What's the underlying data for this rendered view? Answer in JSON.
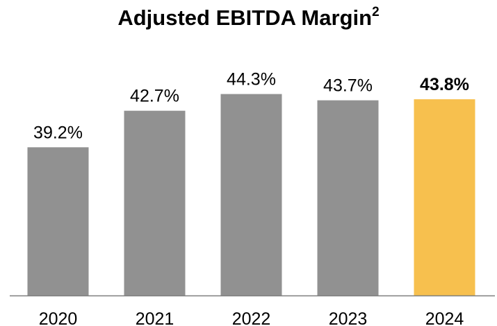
{
  "chart_data": {
    "type": "bar",
    "title": "Adjusted EBITDA Margin",
    "title_superscript": "2",
    "categories": [
      "2020",
      "2021",
      "2022",
      "2023",
      "2024"
    ],
    "values": [
      39.2,
      42.7,
      44.3,
      43.7,
      43.8
    ],
    "value_labels": [
      "39.2%",
      "42.7%",
      "44.3%",
      "43.7%",
      "43.8%"
    ],
    "highlight_index": 4,
    "colors": {
      "bar": "#919191",
      "highlight": "#F7C04E",
      "axis": "#7f7f7f"
    },
    "ylim": [
      25,
      46
    ],
    "grid": false,
    "legend": "none",
    "xlabel": "",
    "ylabel": ""
  }
}
